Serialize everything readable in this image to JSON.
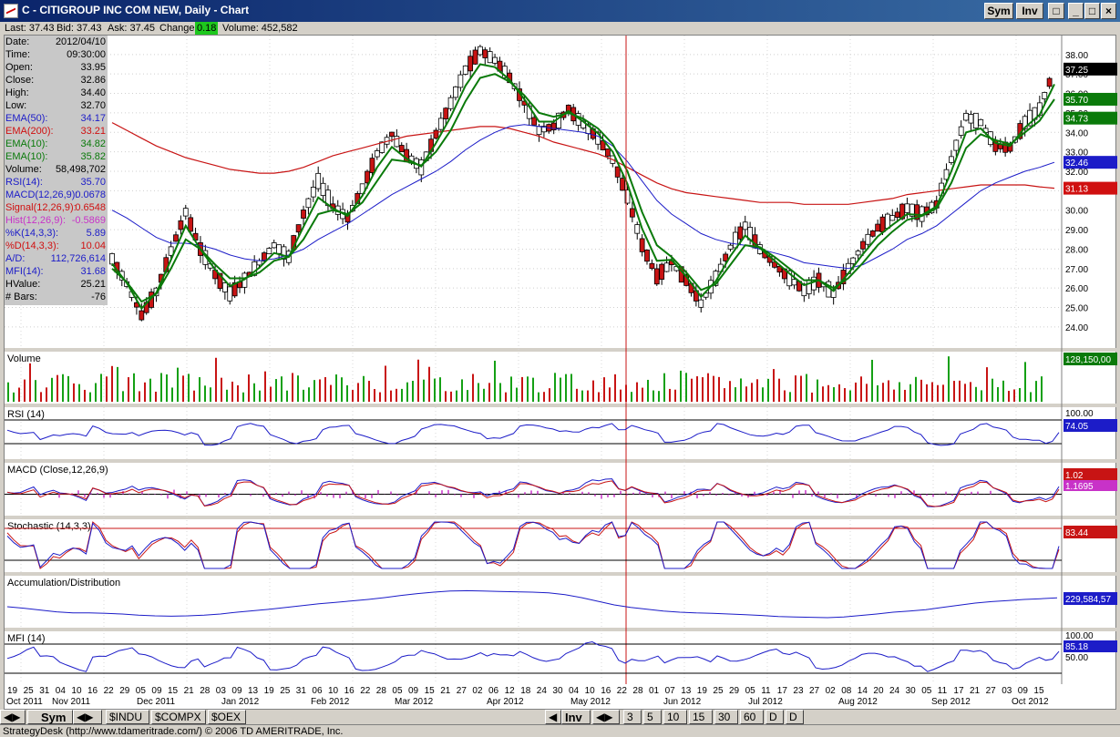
{
  "window": {
    "title": "C - CITIGROUP INC COM NEW, Daily - Chart",
    "sym_button": "Sym",
    "inv_button": "Inv"
  },
  "quote": {
    "last": "Last: 37.43",
    "bid": "Bid: 37.43",
    "ask": "Ask: 37.45",
    "change_label": "Change:",
    "change_value": "0.18",
    "volume": "Volume: 452,582"
  },
  "data_window": [
    {
      "label": "Date:",
      "value": "2012/04/10",
      "color": "#000000"
    },
    {
      "label": "Time:",
      "value": "09:30:00",
      "color": "#000000"
    },
    {
      "label": "Open:",
      "value": "33.95",
      "color": "#000000"
    },
    {
      "label": "Close:",
      "value": "32.86",
      "color": "#000000"
    },
    {
      "label": "High:",
      "value": "34.40",
      "color": "#000000"
    },
    {
      "label": "Low:",
      "value": "32.70",
      "color": "#000000"
    },
    {
      "label": "EMA(50):",
      "value": "34.17",
      "color": "#1c1cc8"
    },
    {
      "label": "EMA(200):",
      "value": "33.21",
      "color": "#d01010"
    },
    {
      "label": "EMA(10):",
      "value": "34.82",
      "color": "#0a7a0a"
    },
    {
      "label": "EMA(10):",
      "value": "35.82",
      "color": "#0a7a0a"
    },
    {
      "label": "Volume:",
      "value": "58,498,702",
      "color": "#000000"
    },
    {
      "label": "RSI(14):",
      "value": "35.70",
      "color": "#1c1cc8"
    },
    {
      "label": "MACD(12,26,9):",
      "value": "0.0678",
      "color": "#1c1cc8"
    },
    {
      "label": "Signal(12,26,9):",
      "value": "0.6548",
      "color": "#d01010"
    },
    {
      "label": "Hist(12,26,9):",
      "value": "-0.5869",
      "color": "#c832c8"
    },
    {
      "label": "%K(14,3,3):",
      "value": "5.89",
      "color": "#1c1cc8"
    },
    {
      "label": "%D(14,3,3):",
      "value": "10.04",
      "color": "#d01010"
    },
    {
      "label": "A/D:",
      "value": "112,726,614",
      "color": "#1c1cc8"
    },
    {
      "label": "MFI(14):",
      "value": "31.68",
      "color": "#1c1cc8"
    },
    {
      "label": "HValue:",
      "value": "25.21",
      "color": "#000000"
    },
    {
      "label": "# Bars:",
      "value": "-76",
      "color": "#000000"
    }
  ],
  "price_axis": {
    "ticks": [
      "38.00",
      "37.00",
      "36.00",
      "35.00",
      "34.00",
      "33.00",
      "32.00",
      "31.00",
      "30.00",
      "29.00",
      "28.00",
      "27.00",
      "26.00",
      "25.00",
      "24.00"
    ],
    "badges": [
      {
        "value": "37.25",
        "color": "#000000"
      },
      {
        "value": "35.70",
        "color": "#0a7a0a"
      },
      {
        "value": "34.73",
        "color": "#0a7a0a"
      },
      {
        "value": "32.46",
        "color": "#1c1cc8"
      },
      {
        "value": "31.13",
        "color": "#d01010"
      }
    ]
  },
  "panels": {
    "volume": {
      "label": "Volume",
      "badge": "128,150,00"
    },
    "rsi": {
      "label": "RSI (14)",
      "top_tick": "100.00",
      "badge": "74.05"
    },
    "macd": {
      "label": "MACD (Close,12,26,9)",
      "badge1": "1.02",
      "badge2": "1.1695"
    },
    "stoch": {
      "label": "Stochastic (14,3,3)",
      "badge": "83.44"
    },
    "ad": {
      "label": "Accumulation/Distribution",
      "badge": "229,584,57"
    },
    "mfi": {
      "label": "MFI (14)",
      "top_tick": "100.00",
      "badge": "85.18",
      "mid_tick": "50.00"
    }
  },
  "date_axis": {
    "days": [
      "19",
      "25",
      "31",
      "04",
      "10",
      "16",
      "22",
      "29",
      "05",
      "09",
      "15",
      "21",
      "28",
      "03",
      "09",
      "13",
      "19",
      "25",
      "31",
      "06",
      "10",
      "16",
      "22",
      "28",
      "05",
      "09",
      "15",
      "21",
      "27",
      "02",
      "06",
      "12",
      "18",
      "24",
      "30",
      "04",
      "10",
      "16",
      "22",
      "28",
      "01",
      "07",
      "13",
      "19",
      "25",
      "29",
      "05",
      "11",
      "17",
      "23",
      "27",
      "02",
      "08",
      "14",
      "20",
      "24",
      "30",
      "05",
      "11",
      "17",
      "21",
      "27",
      "03",
      "09",
      "15"
    ],
    "months": [
      {
        "label": "Oct 2011"
      },
      {
        "label": "Nov 2011"
      },
      {
        "label": "Dec 2011"
      },
      {
        "label": "Jan 2012"
      },
      {
        "label": "Feb 2012"
      },
      {
        "label": "Mar 2012"
      },
      {
        "label": "Apr 2012"
      },
      {
        "label": "May 2012"
      },
      {
        "label": "Jun 2012"
      },
      {
        "label": "Jul 2012"
      },
      {
        "label": "Aug 2012"
      },
      {
        "label": "Sep 2012"
      },
      {
        "label": "Oct 2012"
      }
    ]
  },
  "bottom": {
    "sym_tab": "Sym",
    "symbol_tabs": [
      "$INDU",
      "$COMPX",
      "$OEX"
    ],
    "inv_tab": "Inv",
    "interval_tabs": [
      "3",
      "5",
      "10",
      "15",
      "30",
      "60",
      "D",
      "D"
    ]
  },
  "status": "StrategyDesk (http://www.tdameritrade.com/) © 2006 TD AMERITRADE, Inc.",
  "chart_data": {
    "type": "candlestick",
    "symbol": "C",
    "dates": [
      "Oct 2011",
      "Nov 2011",
      "Dec 2011",
      "Jan 2012",
      "Feb 2012",
      "Mar 2012",
      "Apr 2012",
      "May 2012",
      "Jun 2012",
      "Jul 2012",
      "Aug 2012",
      "Sep 2012",
      "Oct 2012"
    ],
    "close_path": [
      27.5,
      26.2,
      24.6,
      25.8,
      27.9,
      29.9,
      28.0,
      26.7,
      25.7,
      26.4,
      27.3,
      28.2,
      27.6,
      29.8,
      31.5,
      30.2,
      29.6,
      31.1,
      32.9,
      33.9,
      32.8,
      32.2,
      33.9,
      35.5,
      37.2,
      38.2,
      37.7,
      36.8,
      35.5,
      34.1,
      34.3,
      35.2,
      34.4,
      33.7,
      32.6,
      30.7,
      28.2,
      26.6,
      27.3,
      26.4,
      25.2,
      26.5,
      28.1,
      29.2,
      28.0,
      27.2,
      26.5,
      25.9,
      26.4,
      25.7,
      27.0,
      28.2,
      29.1,
      29.6,
      30.1,
      29.8,
      30.3,
      32.6,
      34.8,
      34.5,
      33.3,
      33.2,
      34.5,
      35.2,
      37.25
    ],
    "ema10_path": [
      27.0,
      26.3,
      25.3,
      25.7,
      27.0,
      28.5,
      28.0,
      27.2,
      26.5,
      26.5,
      26.8,
      27.4,
      27.6,
      28.5,
      29.8,
      30.0,
      29.8,
      30.4,
      31.5,
      32.6,
      32.5,
      32.3,
      33.0,
      34.1,
      35.6,
      36.8,
      37.0,
      36.6,
      35.9,
      35.0,
      34.8,
      35.0,
      34.7,
      34.2,
      33.4,
      32.0,
      29.9,
      28.2,
      27.6,
      26.8,
      25.9,
      26.2,
      27.2,
      28.2,
      28.1,
      27.6,
      27.0,
      26.4,
      26.4,
      26.0,
      26.5,
      27.3,
      28.2,
      28.9,
      29.5,
      29.7,
      30.1,
      31.4,
      33.2,
      33.9,
      33.6,
      33.4,
      34.0,
      34.6,
      35.7
    ],
    "ema50_path": [
      30.0,
      29.6,
      29.1,
      28.6,
      28.3,
      28.3,
      28.2,
      28.0,
      27.7,
      27.5,
      27.4,
      27.5,
      27.7,
      28.0,
      28.5,
      28.9,
      29.3,
      29.8,
      30.3,
      30.8,
      31.2,
      31.6,
      32.0,
      32.5,
      33.1,
      33.6,
      34.0,
      34.3,
      34.4,
      34.3,
      34.2,
      34.1,
      34.0,
      33.8,
      33.3,
      32.5,
      31.5,
      30.5,
      29.8,
      29.3,
      28.8,
      28.5,
      28.3,
      28.2,
      28.0,
      27.8,
      27.6,
      27.3,
      27.2,
      27.1,
      27.0,
      27.2,
      27.6,
      28.0,
      28.5,
      28.8,
      29.2,
      29.8,
      30.4,
      31.0,
      31.4,
      31.7,
      32.0,
      32.2,
      32.46
    ],
    "ema200_path": [
      34.5,
      34.1,
      33.7,
      33.3,
      33.0,
      32.7,
      32.5,
      32.3,
      32.1,
      32.0,
      31.9,
      31.9,
      32.0,
      32.2,
      32.5,
      32.8,
      33.0,
      33.2,
      33.4,
      33.6,
      33.8,
      33.9,
      34.0,
      34.1,
      34.2,
      34.3,
      34.3,
      34.2,
      34.0,
      33.8,
      33.5,
      33.3,
      33.1,
      32.9,
      32.6,
      32.2,
      31.8,
      31.4,
      31.1,
      30.9,
      30.8,
      30.7,
      30.6,
      30.5,
      30.4,
      30.4,
      30.4,
      30.3,
      30.3,
      30.3,
      30.3,
      30.4,
      30.5,
      30.6,
      30.8,
      30.9,
      31.0,
      31.1,
      31.2,
      31.3,
      31.3,
      31.3,
      31.3,
      31.2,
      31.13
    ]
  }
}
